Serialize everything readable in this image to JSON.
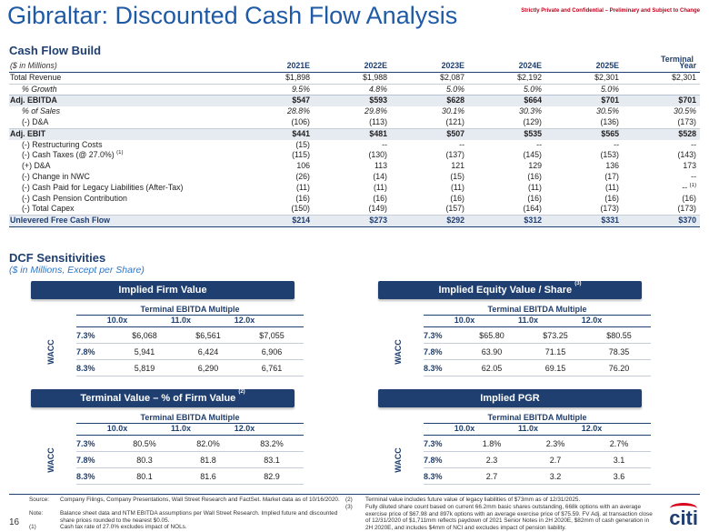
{
  "title": "Gibraltar: Discounted Cash Flow Analysis",
  "confidential": "Strictly Private and Confidential – Preliminary and Subject to Change",
  "cash_flow": {
    "section_title": "Cash Flow Build",
    "units_label": "($ in Millions)",
    "terminal_top": "Terminal",
    "columns": [
      "2021E",
      "2022E",
      "2023E",
      "2024E",
      "2025E",
      "Year"
    ],
    "rows": [
      {
        "label": "Total Revenue",
        "values": [
          "$1,898",
          "$1,988",
          "$2,087",
          "$2,192",
          "$2,301",
          "$2,301"
        ]
      },
      {
        "label": "% Growth",
        "values": [
          "9.5%",
          "4.8%",
          "5.0%",
          "5.0%",
          "5.0%",
          ""
        ]
      },
      {
        "label": "Adj. EBITDA",
        "values": [
          "$547",
          "$593",
          "$628",
          "$664",
          "$701",
          "$701"
        ]
      },
      {
        "label": "% of Sales",
        "values": [
          "28.8%",
          "29.8%",
          "30.1%",
          "30.3%",
          "30.5%",
          "30.5%"
        ]
      },
      {
        "label": "(-) D&A",
        "values": [
          "(106)",
          "(113)",
          "(121)",
          "(129)",
          "(136)",
          "(173)"
        ]
      },
      {
        "label": "Adj. EBIT",
        "values": [
          "$441",
          "$481",
          "$507",
          "$535",
          "$565",
          "$528"
        ]
      },
      {
        "label": "(-) Restructuring Costs",
        "values": [
          "(15)",
          "--",
          "--",
          "--",
          "--",
          "--"
        ]
      },
      {
        "label": "(-) Cash Taxes (@ 27.0%)",
        "sup": "(1)",
        "values": [
          "(115)",
          "(130)",
          "(137)",
          "(145)",
          "(153)",
          "(143)"
        ]
      },
      {
        "label": "(+) D&A",
        "values": [
          "106",
          "113",
          "121",
          "129",
          "136",
          "173"
        ]
      },
      {
        "label": "(-) Change in NWC",
        "values": [
          "(26)",
          "(14)",
          "(15)",
          "(16)",
          "(17)",
          "--"
        ]
      },
      {
        "label": "(-) Cash Paid for Legacy Liabilities (After-Tax)",
        "values": [
          "(11)",
          "(11)",
          "(11)",
          "(11)",
          "(11)",
          "--"
        ],
        "last_sup": "(1)"
      },
      {
        "label": "(-) Cash Pension Contribution",
        "values": [
          "(16)",
          "(16)",
          "(16)",
          "(16)",
          "(16)",
          "(16)"
        ]
      },
      {
        "label": "(-) Total Capex",
        "values": [
          "(150)",
          "(149)",
          "(157)",
          "(164)",
          "(173)",
          "(173)"
        ]
      },
      {
        "label": "Unlevered Free Cash Flow",
        "values": [
          "$214",
          "$273",
          "$292",
          "$312",
          "$331",
          "$370"
        ]
      }
    ]
  },
  "dcf": {
    "section_title": "DCF Sensitivities",
    "units_label": "($ in Millions, Except per Share)",
    "multiple_label": "Terminal EBITDA Multiple",
    "wacc_label": "WACC",
    "multiples": [
      "10.0x",
      "11.0x",
      "12.0x"
    ],
    "waccs": [
      "7.3%",
      "7.8%",
      "8.3%"
    ],
    "panels": [
      {
        "title": "Implied Firm Value",
        "sup": "",
        "values": [
          [
            "$6,068",
            "$6,561",
            "$7,055"
          ],
          [
            "5,941",
            "6,424",
            "6,906"
          ],
          [
            "5,819",
            "6,290",
            "6,761"
          ]
        ]
      },
      {
        "title": "Implied Equity Value / Share",
        "sup": "(3)",
        "values": [
          [
            "$65.80",
            "$73.25",
            "$80.55"
          ],
          [
            "63.90",
            "71.15",
            "78.35"
          ],
          [
            "62.05",
            "69.15",
            "76.20"
          ]
        ]
      },
      {
        "title": "Terminal Value – % of Firm Value",
        "sup": "(2)",
        "values": [
          [
            "80.5%",
            "82.0%",
            "83.2%"
          ],
          [
            "80.3",
            "81.8",
            "83.1"
          ],
          [
            "80.1",
            "81.6",
            "82.9"
          ]
        ]
      },
      {
        "title": "Implied PGR",
        "sup": "",
        "values": [
          [
            "1.8%",
            "2.3%",
            "2.7%"
          ],
          [
            "2.3",
            "2.7",
            "3.1"
          ],
          [
            "2.7",
            "3.2",
            "3.6"
          ]
        ]
      }
    ]
  },
  "footnotes": {
    "source_label": "Source:",
    "source_text": "Company Filings, Company Presentations, Wall Street Research and FactSet. Market data as of 10/16/2020.",
    "note_label": "Note:",
    "note_text": "Balance sheet data and NTM EBITDA assumptions per Wall Street Research. Implied future and discounted share prices rounded to the nearest $0.05.",
    "fn1_label": "(1)",
    "fn1_text": "Cash tax rate of 27.0% excludes impact of NOLs.",
    "fn2_label": "(2)",
    "fn2_text": "Terminal value includes future value of legacy liabilities of $73mm as of 12/31/2025.",
    "fn3_label": "(3)",
    "fn3_text": "Fully diluted share count based on current 66.2mm basic shares outstanding, 668k options with an average exercise price of $67.98 and 897k options with an average exercise price of $75.59. FV Adj. at transaction close of 12/31/2020 of $1,711mm reflects paydown of 2021 Senior Notes in 2H 2020E, $82mm of cash generation in 2H 2020E, and includes $4mm of NCI and excludes impact of pension liability."
  },
  "page_number": "16",
  "logo": "citi"
}
